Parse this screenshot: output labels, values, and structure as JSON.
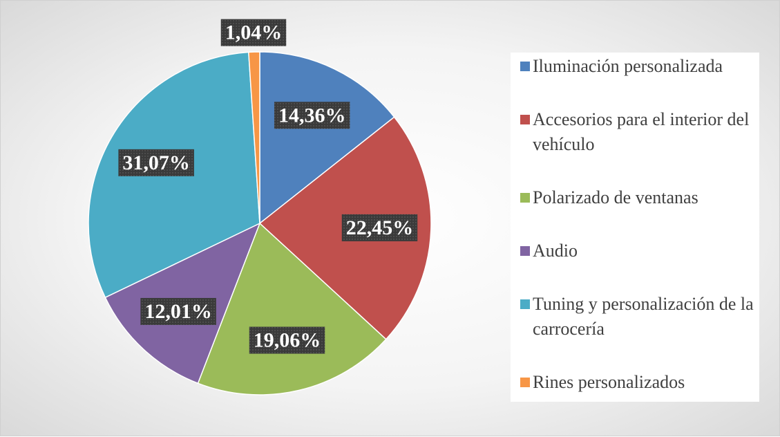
{
  "chart_data": {
    "type": "pie",
    "categories": [
      "Iluminación personalizada",
      "Accesorios para el interior del vehículo",
      "Polarizado de ventanas",
      "Audio",
      "Tuning y personalización de la carrocería",
      "Rines personalizados"
    ],
    "values": [
      14.36,
      22.45,
      19.06,
      12.01,
      31.07,
      1.04
    ],
    "value_labels": [
      "14,36%",
      "22,45%",
      "19,06%",
      "12,01%",
      "31,07%",
      "1,04%"
    ],
    "colors": [
      "#4f81bd",
      "#c0504d",
      "#9bbb59",
      "#8064a2",
      "#4bacc6",
      "#f79646"
    ],
    "legend": "right"
  }
}
